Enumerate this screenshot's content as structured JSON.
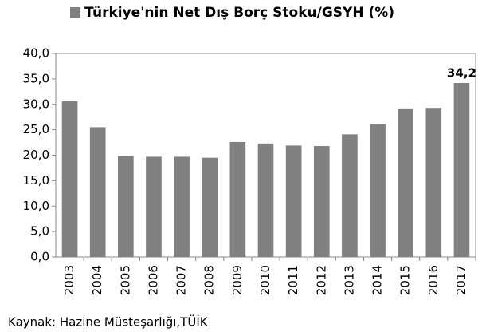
{
  "chart_data": {
    "type": "bar",
    "categories": [
      "2003",
      "2004",
      "2005",
      "2006",
      "2007",
      "2008",
      "2009",
      "2010",
      "2011",
      "2012",
      "2013",
      "2014",
      "2015",
      "2016",
      "2017"
    ],
    "series": [
      {
        "name": "Türkiye'nin Net Dış Borç Stoku/GSYH (%)",
        "color": "#808080",
        "values": [
          30.6,
          25.5,
          19.8,
          19.7,
          19.7,
          19.5,
          22.6,
          22.3,
          21.9,
          21.8,
          24.1,
          26.1,
          29.2,
          29.3,
          34.2
        ],
        "value_labels": [
          null,
          null,
          null,
          null,
          null,
          null,
          null,
          null,
          null,
          null,
          null,
          null,
          null,
          null,
          "34,2"
        ]
      }
    ],
    "ylim": [
      0,
      40
    ],
    "yticks": [
      {
        "value": 0,
        "label": "0,0"
      },
      {
        "value": 5,
        "label": "5,0"
      },
      {
        "value": 10,
        "label": "10,0"
      },
      {
        "value": 15,
        "label": "15,0"
      },
      {
        "value": 20,
        "label": "20,0"
      },
      {
        "value": 25,
        "label": "25,0"
      },
      {
        "value": 30,
        "label": "30,0"
      },
      {
        "value": 35,
        "label": "35,0"
      },
      {
        "value": 40,
        "label": "40,0"
      }
    ],
    "grid": false,
    "source": "Kaynak: Hazine Müsteşarlığı,TÜİK"
  }
}
